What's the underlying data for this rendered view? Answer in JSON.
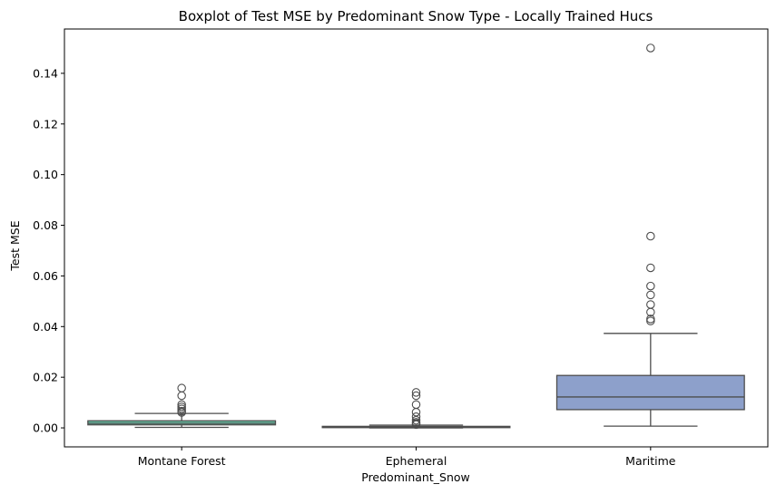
{
  "chart_data": {
    "type": "box",
    "title": "Boxplot of Test MSE by Predominant Snow Type - Locally Trained Hucs",
    "xlabel": "Predominant_Snow",
    "ylabel": "Test MSE",
    "ylim": [
      -0.0075,
      0.1575
    ],
    "yticks": [
      0.0,
      0.02,
      0.04,
      0.06,
      0.08,
      0.1,
      0.12,
      0.14
    ],
    "ytick_labels": [
      "0.00",
      "0.02",
      "0.04",
      "0.06",
      "0.08",
      "0.10",
      "0.12",
      "0.14"
    ],
    "grid": false,
    "categories": [
      "Montane Forest",
      "Ephemeral",
      "Maritime"
    ],
    "series": [
      {
        "category": "Montane Forest",
        "color": "#66c2a5",
        "whisker_low": 0.0002,
        "q1": 0.0012,
        "median": 0.0018,
        "q3": 0.0028,
        "whisker_high": 0.0057,
        "outliers": [
          0.0157,
          0.0127,
          0.0092,
          0.0083,
          0.0075,
          0.0066,
          0.0061
        ]
      },
      {
        "category": "Ephemeral",
        "color": "#fc8d62",
        "whisker_low": 0.0,
        "q1": 0.0001,
        "median": 0.0003,
        "q3": 0.0006,
        "whisker_high": 0.0011,
        "outliers": [
          0.014,
          0.0127,
          0.0092,
          0.0062,
          0.0044,
          0.003,
          0.0022,
          0.0017,
          0.0013
        ]
      },
      {
        "category": "Maritime",
        "color": "#8da0cb",
        "whisker_low": 0.0007,
        "q1": 0.0072,
        "median": 0.0122,
        "q3": 0.0207,
        "whisker_high": 0.0373,
        "outliers": [
          0.15,
          0.0757,
          0.0632,
          0.056,
          0.0525,
          0.0487,
          0.0457,
          0.043,
          0.0422
        ]
      }
    ]
  }
}
